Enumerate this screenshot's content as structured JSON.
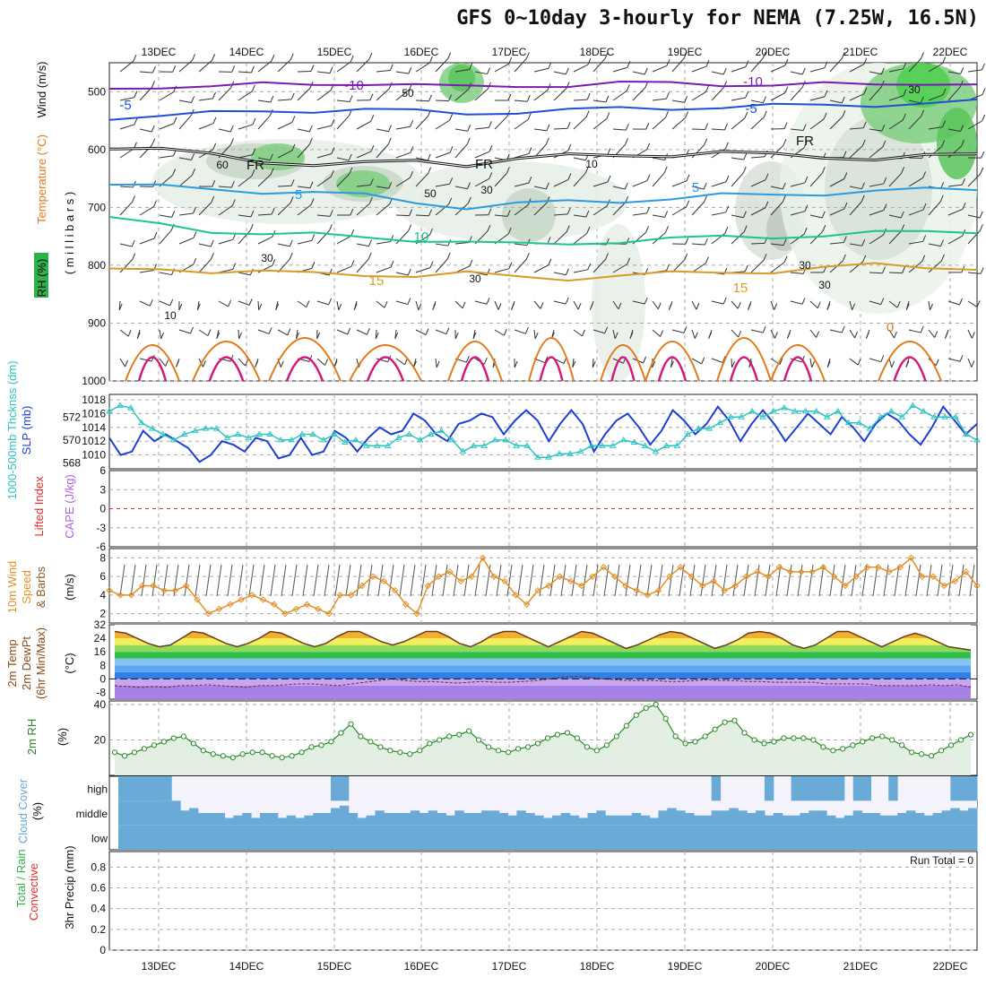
{
  "title": "GFS 0~10day 3-hourly for NEMA (7.25W, 16.5N)",
  "x_ticks": [
    "13DEC",
    "14DEC",
    "15DEC",
    "16DEC",
    "17DEC",
    "18DEC",
    "19DEC",
    "20DEC",
    "21DEC",
    "22DEC"
  ],
  "colors": {
    "grid": "#aaaaaa",
    "purple": "#7a1ab5",
    "blue": "#1f4fd8",
    "cyan": "#2a9be0",
    "teal": "#1cc48f",
    "gold": "#d99a2a",
    "orange": "#e07a1a",
    "magenta": "#d4187a",
    "green": "#3bb14a",
    "cloud": "#6aaad6",
    "slp": "#1e3fd0",
    "thk": "#2ec4c4",
    "wind10": "#e0902a",
    "rh2m": "#2a8a2a",
    "lifted": "#e03030",
    "cape": "#b060e0"
  },
  "labels": {
    "p1_rh": "RH (%)",
    "p1_temp": "Temperature (°C)",
    "p1_wind": "Wind (m/s)",
    "p1_unit": "( m i l l i b a r s )",
    "p2_thk": "1000-500mb Thcknss (dm)",
    "p2_slp": "SLP (mb)",
    "p3_li": "Lifted Index",
    "p3_cape": "CAPE (J/kg)",
    "p4_a": "10m Wind",
    "p4_b": "Speed",
    "p4_c": "& Barbs",
    "p4_unit": "(m/s)",
    "p5_a": "2m Temp",
    "p5_b": "2m DewPt",
    "p5_c": "(6hr Min/Max)",
    "p5_unit": "(°C)",
    "p6_a": "2m RH",
    "p6_unit": "(%)",
    "p7_a": "Cloud Cover",
    "p7_unit": "(%)",
    "p8_a": "Total / Rain",
    "p8_b": "Convective",
    "p8_c": "3hr Precip (mm)",
    "run_total": "Run Total = 0"
  },
  "contour_labels": [
    {
      "text": "-10",
      "color": "purple"
    },
    {
      "text": "-10",
      "color": "purple"
    },
    {
      "text": "-5",
      "color": "blue"
    },
    {
      "text": "-5",
      "color": "blue"
    },
    {
      "text": "FR",
      "color": "black"
    },
    {
      "text": "FR",
      "color": "black"
    },
    {
      "text": "FR",
      "color": "black"
    },
    {
      "text": "5",
      "color": "cyan"
    },
    {
      "text": "5",
      "color": "cyan"
    },
    {
      "text": "10",
      "color": "teal"
    },
    {
      "text": "15",
      "color": "gold"
    },
    {
      "text": "15",
      "color": "gold"
    },
    {
      "text": "0",
      "color": "orange"
    }
  ],
  "rh_labels": [
    "60",
    "50",
    "30",
    "10",
    "30",
    "30",
    "30",
    "30",
    "30",
    "10",
    "50"
  ],
  "chart_data": [
    {
      "type": "line",
      "panel": "upper-air",
      "title": "Temperature / RH / Wind",
      "ylabel": "millibars",
      "yticks": [
        "500",
        "600",
        "700",
        "800",
        "900",
        "1000"
      ],
      "ylim": [
        1000,
        450
      ],
      "series": [
        {
          "name": "-10C",
          "values": [
            495,
            490,
            492,
            488,
            486,
            485,
            490,
            492,
            488,
            490,
            487,
            484,
            486,
            490,
            488,
            486,
            484,
            490
          ]
        },
        {
          "name": "-5C",
          "values": [
            545,
            540,
            538,
            535,
            532,
            530,
            535,
            538,
            534,
            532,
            530,
            528,
            526,
            525,
            524,
            522,
            520,
            518
          ]
        },
        {
          "name": "FR",
          "values": [
            595,
            600,
            610,
            620,
            625,
            625,
            620,
            625,
            615,
            612,
            610,
            608,
            605,
            610,
            612,
            615,
            612,
            610
          ]
        },
        {
          "name": "5C",
          "values": [
            660,
            665,
            668,
            672,
            675,
            680,
            690,
            700,
            695,
            690,
            688,
            685,
            680,
            678,
            675,
            672,
            670,
            668
          ]
        },
        {
          "name": "10C",
          "values": [
            720,
            730,
            740,
            745,
            748,
            752,
            755,
            760,
            765,
            762,
            758,
            755,
            752,
            750,
            748,
            745,
            742,
            740
          ]
        },
        {
          "name": "15C",
          "values": [
            810,
            805,
            810,
            812,
            815,
            815,
            818,
            815,
            820,
            822,
            818,
            815,
            812,
            810,
            805,
            800,
            802,
            805
          ]
        }
      ]
    },
    {
      "type": "line",
      "panel": "thickness-slp",
      "series": [
        {
          "name": "SLP (mb)",
          "ylim": [
            1008,
            1018
          ],
          "values": [
            1012.5,
            1010,
            1010.5,
            1013.5,
            1012,
            1013,
            1012,
            1011,
            1009,
            1010,
            1012,
            1011.5,
            1010.5,
            1012.5,
            1012,
            1009.5,
            1010,
            1012.5,
            1010,
            1010.5,
            1013.5,
            1012.5,
            1010.5,
            1012.5,
            1014,
            1013,
            1013.5,
            1016,
            1015,
            1013,
            1012,
            1014.5,
            1015,
            1016,
            1015.5,
            1013,
            1015,
            1016.5,
            1015,
            1012,
            1014.5,
            1016.5,
            1014.5,
            1010.5,
            1013,
            1015,
            1016,
            1014,
            1011.5,
            1013.5,
            1016.5,
            1015,
            1013,
            1014.5,
            1017,
            1015,
            1012,
            1014.5,
            1016.5,
            1014.5,
            1012,
            1014,
            1016,
            1014.5,
            1013,
            1015.5,
            1014,
            1012,
            1014.5,
            1016,
            1015,
            1013,
            1011.5,
            1014,
            1017,
            1015,
            1013,
            1014.5
          ]
        },
        {
          "name": "1000-500mb Thcknss (dm)",
          "ylim": [
            567.5,
            573.5
          ],
          "values": [
            572.5,
            573,
            572.8,
            571.5,
            571,
            570.5,
            570,
            570.5,
            570.8,
            571,
            571,
            570.2,
            570.5,
            570.2,
            570.5,
            570.5,
            570,
            570,
            570.5,
            570.5,
            570,
            570.5,
            569.8,
            570,
            569.5,
            569.5,
            569.5,
            570.2,
            570.5,
            570,
            570.5,
            570.8,
            570,
            569,
            569.5,
            569.5,
            570,
            570,
            569.5,
            569.5,
            568.5,
            568.5,
            568.8,
            568.8,
            569,
            569.5,
            569.5,
            569.5,
            570,
            569.8,
            569.5,
            569,
            569.5,
            569.5,
            570.5,
            571,
            571,
            571.5,
            572,
            572,
            572.5,
            572,
            572.5,
            572.8,
            572.5,
            572.5,
            572.5,
            572,
            572.5,
            571.5,
            571.5,
            571,
            572,
            572.5,
            572,
            573,
            572.5,
            572,
            572,
            572,
            570.5,
            570
          ]
        }
      ]
    },
    {
      "type": "line",
      "panel": "lifted-index-cape",
      "yticks": [
        "6",
        "3",
        "0",
        "-3",
        "-6"
      ],
      "ylim": [
        6,
        -6
      ],
      "series": [
        {
          "name": "Lifted Index zero line",
          "values": [
            0
          ]
        }
      ]
    },
    {
      "type": "line",
      "panel": "10m-wind",
      "ylabel": "(m/s)",
      "yticks": [
        "2",
        "4",
        "6",
        "8"
      ],
      "ylim": [
        1,
        9
      ],
      "series": [
        {
          "name": "10m wind speed",
          "values": [
            4.5,
            4,
            4,
            5,
            5,
            4.5,
            4.5,
            5,
            3.5,
            2,
            2.5,
            3,
            3.5,
            4,
            3.5,
            3,
            2,
            2.5,
            3,
            2.5,
            2,
            4,
            4,
            5,
            6,
            5.5,
            4.5,
            3,
            2,
            5,
            6,
            6.5,
            5.5,
            6,
            8,
            6,
            5.5,
            4,
            3,
            4.5,
            5,
            6,
            5.5,
            5,
            6,
            7,
            6,
            5,
            4.5,
            4,
            4.5,
            6,
            7,
            6,
            5,
            5.5,
            4.5,
            5,
            6,
            6.5,
            6,
            7,
            6.5,
            6.5,
            6.5,
            7,
            6,
            5,
            6,
            7,
            7,
            6.5,
            7,
            8,
            6,
            6,
            5,
            5.5,
            6.5,
            5
          ]
        }
      ]
    },
    {
      "type": "area",
      "panel": "2m-temp",
      "ylabel": "(°C)",
      "yticks": [
        "32",
        "24",
        "16",
        "8",
        "0",
        "-8"
      ],
      "ylim": [
        -12,
        32
      ],
      "series": [
        {
          "name": "2m Temp",
          "values": [
            28,
            27,
            24,
            21,
            19,
            20,
            24,
            28,
            27,
            24,
            21,
            19,
            21,
            24,
            28,
            27,
            24,
            21,
            19,
            21,
            25,
            28,
            28,
            25,
            22,
            20,
            22,
            25,
            28,
            28,
            25,
            21,
            19,
            22,
            26,
            28,
            28,
            25,
            22,
            19,
            22,
            25,
            28,
            27,
            24,
            21,
            18,
            20,
            23,
            26,
            28,
            27,
            24,
            21,
            18,
            20,
            23,
            27,
            28,
            27,
            24,
            20,
            18,
            20,
            24,
            28,
            28,
            25,
            22,
            19,
            22,
            25,
            27,
            25,
            22,
            19,
            18,
            17
          ]
        },
        {
          "name": "2m DewPt",
          "values": [
            -4,
            -4.5,
            -5,
            -4.5,
            -5,
            -4,
            -4,
            -3.5,
            -4,
            -4.5,
            -5,
            -4,
            -4,
            -3.5,
            -3,
            -3,
            -3.5,
            -4,
            -3,
            -2,
            -1,
            0,
            -1,
            -1.5,
            -1.5,
            -2,
            -2.5,
            -2,
            -1.5,
            -2,
            -2,
            -1.5,
            -1,
            0,
            1,
            1.5,
            1,
            0,
            -0.5,
            -1,
            -1,
            -1,
            -1.5,
            -1.5,
            -1,
            -0.5,
            -1,
            -1,
            -1.5,
            -1.5,
            -2,
            -2,
            -2,
            -2,
            -3,
            -3,
            -3,
            -3,
            -4,
            -4,
            -4,
            -4,
            -3.5,
            -4,
            -3.5,
            -5
          ]
        }
      ]
    },
    {
      "type": "area",
      "panel": "2m-rh",
      "ylabel": "(%)",
      "yticks": [
        "20",
        "40"
      ],
      "ylim": [
        0,
        42
      ],
      "series": [
        {
          "name": "2m RH",
          "values": [
            13,
            11,
            13,
            15,
            17,
            19,
            21,
            22,
            18,
            14,
            12,
            11,
            10,
            12,
            13,
            13,
            11,
            10,
            11,
            13,
            16,
            17,
            19,
            24,
            29,
            22,
            19,
            16,
            14,
            13,
            12,
            14,
            18,
            20,
            22,
            23,
            25,
            20,
            16,
            14,
            13,
            15,
            16,
            18,
            21,
            23,
            24,
            21,
            16,
            14,
            17,
            22,
            28,
            34,
            38,
            40,
            32,
            22,
            18,
            19,
            22,
            26,
            30,
            31,
            24,
            20,
            18,
            19,
            21,
            21,
            21,
            20,
            16,
            14,
            15,
            17,
            19,
            21,
            22,
            20,
            17,
            13,
            12,
            11,
            14,
            17,
            20,
            23
          ]
        }
      ]
    },
    {
      "type": "heatmap",
      "panel": "cloud-cover",
      "yticks": [
        "high",
        "middle",
        "low"
      ],
      "series": [
        {
          "name": "high",
          "values": [
            1,
            1,
            1,
            1,
            1,
            1,
            0,
            0,
            0,
            0,
            0,
            0,
            0,
            0,
            0,
            0,
            0,
            0,
            0,
            0,
            0,
            0,
            0,
            0,
            1,
            1,
            0,
            0,
            0,
            0,
            0,
            0,
            0,
            0,
            0,
            0,
            0,
            0,
            0,
            0,
            0,
            0,
            0,
            0,
            0,
            0,
            0,
            0,
            0,
            0,
            0,
            0,
            0,
            0,
            0,
            0,
            0,
            0,
            0,
            0,
            0,
            0,
            0,
            0,
            0,
            0,
            0,
            1,
            0,
            0,
            0,
            0,
            0,
            1,
            0,
            0,
            1,
            1,
            1,
            1,
            1,
            1,
            0,
            1,
            1,
            0,
            0,
            1,
            0,
            0,
            0,
            0,
            0,
            0,
            1,
            1,
            1
          ]
        },
        {
          "name": "middle",
          "values": [
            1,
            1,
            1,
            1,
            1,
            1,
            1,
            0.6,
            0.7,
            0.5,
            0.5,
            0.5,
            0.3,
            0.4,
            0.5,
            0.3,
            0.5,
            0.5,
            0.3,
            0.4,
            0.3,
            0.4,
            0.5,
            0.5,
            0.7,
            0.8,
            0.5,
            0.3,
            0.4,
            0.6,
            0.5,
            0.5,
            0.5,
            0.6,
            0.5,
            0.6,
            0.5,
            0.4,
            0.6,
            0.5,
            0.5,
            0.6,
            0.6,
            0.5,
            0.4,
            0.6,
            0.5,
            0.4,
            0.3,
            0.4,
            0.5,
            0.4,
            0.3,
            0.5,
            0.6,
            0.4,
            0.4,
            0.4,
            0.5,
            0.4,
            0.3,
            0.6,
            0.7,
            0.6,
            0.5,
            0.4,
            0.4,
            0.6,
            0.6,
            0.7,
            0.6,
            0.5,
            0.6,
            0.4,
            0.5,
            0.4,
            0.4,
            0.5,
            0.6,
            0.6,
            0.4,
            0.3,
            0.4,
            0.6,
            0.5,
            0.5,
            0.4,
            0.4,
            0.5,
            0.6,
            0.5,
            0.4,
            0.5,
            0.6,
            0.7,
            0.6,
            0.7
          ]
        },
        {
          "name": "low",
          "values": [
            1,
            1,
            1,
            1,
            1,
            1,
            1,
            1,
            1,
            1
          ]
        }
      ]
    },
    {
      "type": "bar",
      "panel": "3hr-precip",
      "ylabel": "3hr Precip (mm)",
      "yticks": [
        "0",
        "0.2",
        "0.4",
        "0.6",
        "0.8"
      ],
      "ylim": [
        0,
        0.95
      ],
      "values": []
    }
  ]
}
